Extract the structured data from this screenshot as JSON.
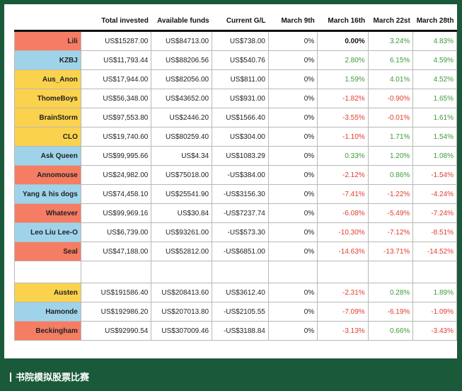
{
  "headers": [
    "",
    "Total invested",
    "Available funds",
    "Current  G/L",
    "March 9th",
    "March 16th",
    "March 22st",
    "March 28th"
  ],
  "rows": [
    {
      "name": "Lili",
      "color": "orange",
      "invested": "US$15287.00",
      "funds": "US$84713.00",
      "gl": "US$738.00",
      "m9": "0%",
      "m16": "0.00%",
      "m22": "3.24%",
      "m28": "4.83%",
      "s16": "zero",
      "s22": "pos",
      "s28": "pos"
    },
    {
      "name": "KZBJ",
      "color": "blue",
      "invested": "US$11,793.44",
      "funds": "US$88206.56",
      "gl": "US$540.76",
      "m9": "0%",
      "m16": "2.80%",
      "m22": "6.15%",
      "m28": "4.59%",
      "s16": "pos",
      "s22": "pos",
      "s28": "pos"
    },
    {
      "name": "Aus_Anon",
      "color": "yellow",
      "invested": "US$17,944.00",
      "funds": "US$82056.00",
      "gl": "US$811.00",
      "m9": "0%",
      "m16": "1.59%",
      "m22": "4.01%",
      "m28": "4.52%",
      "s16": "pos",
      "s22": "pos",
      "s28": "pos"
    },
    {
      "name": "ThomeBoys",
      "color": "yellow",
      "invested": "US$56,348.00",
      "funds": "US$43652.00",
      "gl": "US$931.00",
      "m9": "0%",
      "m16": "-1.82%",
      "m22": "-0.90%",
      "m28": "1.65%",
      "s16": "neg",
      "s22": "neg",
      "s28": "pos"
    },
    {
      "name": "BrainStorm",
      "color": "yellow",
      "invested": "US$97,553.80",
      "funds": "US$2446.20",
      "gl": "US$1566.40",
      "m9": "0%",
      "m16": "-3.55%",
      "m22": "-0.01%",
      "m28": "1.61%",
      "s16": "neg",
      "s22": "neg",
      "s28": "pos"
    },
    {
      "name": "CLO",
      "color": "yellow",
      "invested": "US$19,740.60",
      "funds": "US$80259.40",
      "gl": "US$304.00",
      "m9": "0%",
      "m16": "-1.10%",
      "m22": "1.71%",
      "m28": "1.54%",
      "s16": "neg",
      "s22": "pos",
      "s28": "pos"
    },
    {
      "name": "Ask Queen",
      "color": "blue",
      "invested": "US$99,995.66",
      "funds": "US$4.34",
      "gl": "US$1083.29",
      "m9": "0%",
      "m16": "0.33%",
      "m22": "1.20%",
      "m28": "1.08%",
      "s16": "pos",
      "s22": "pos",
      "s28": "pos"
    },
    {
      "name": "Annomouse",
      "color": "orange",
      "invested": "US$24,982.00",
      "funds": "US$75018.00",
      "gl": "-US$384.00",
      "m9": "0%",
      "m16": "-2.12%",
      "m22": "0.86%",
      "m28": "-1.54%",
      "s16": "neg",
      "s22": "pos",
      "s28": "neg"
    },
    {
      "name": "Yang & his dogs",
      "color": "blue",
      "invested": "US$74,458.10",
      "funds": "US$25541.90",
      "gl": "-US$3156.30",
      "m9": "0%",
      "m16": "-7.41%",
      "m22": "-1.22%",
      "m28": "-4.24%",
      "s16": "neg",
      "s22": "neg",
      "s28": "neg"
    },
    {
      "name": "Whatever",
      "color": "orange",
      "invested": "US$99,969.16",
      "funds": "US$30.84",
      "gl": "-US$7237.74",
      "m9": "0%",
      "m16": "-6.08%",
      "m22": "-5.49%",
      "m28": "-7.24%",
      "s16": "neg",
      "s22": "neg",
      "s28": "neg"
    },
    {
      "name": "Leo Liu Lee-O",
      "color": "blue",
      "invested": "US$6,739.00",
      "funds": "US$93261.00",
      "gl": "-US$573.30",
      "m9": "0%",
      "m16": "-10.30%",
      "m22": "-7.12%",
      "m28": "-8.51%",
      "s16": "neg",
      "s22": "neg",
      "s28": "neg"
    },
    {
      "name": "Seal",
      "color": "orange",
      "invested": "US$47,188.00",
      "funds": "US$52812.00",
      "gl": "-US$6851.00",
      "m9": "0%",
      "m16": "-14.63%",
      "m22": "-13.71%",
      "m28": "-14.52%",
      "s16": "neg",
      "s22": "neg",
      "s28": "neg"
    }
  ],
  "rows2": [
    {
      "name": "Austen",
      "color": "yellow",
      "invested": "US$191586.40",
      "funds": "US$208413.60",
      "gl": "US$3612.40",
      "m9": "0%",
      "m16": "-2.31%",
      "m22": "0.28%",
      "m28": "1.89%",
      "s16": "neg",
      "s22": "pos",
      "s28": "pos"
    },
    {
      "name": "Hamonde",
      "color": "blue",
      "invested": "US$192986.20",
      "funds": "US$207013.80",
      "gl": "-US$2105.55",
      "m9": "0%",
      "m16": "-7.09%",
      "m22": "-6.19%",
      "m28": "-1.09%",
      "s16": "neg",
      "s22": "neg",
      "s28": "neg",
      "boxed22": true
    },
    {
      "name": "Beckingham",
      "color": "orange",
      "invested": "US$92990.54",
      "funds": "US$307009.46",
      "gl": "-US$3188.84",
      "m9": "0%",
      "m16": "-3.13%",
      "m22": "0.66%",
      "m28": "-3.43%",
      "s16": "neg",
      "s22": "pos",
      "s28": "neg"
    }
  ],
  "footer": "书院模拟股票比赛"
}
